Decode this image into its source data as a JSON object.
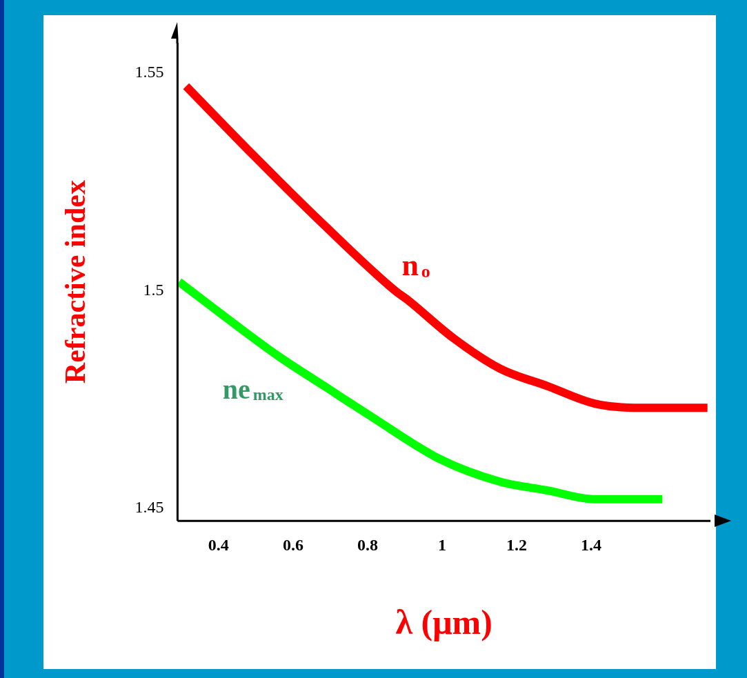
{
  "chart_data": {
    "type": "line",
    "xlabel": "λ (μm)",
    "ylabel": "Refractive index",
    "xlim": [
      0.29,
      1.72
    ],
    "ylim": [
      1.447,
      1.557
    ],
    "xticks": [
      0.4,
      0.6,
      0.8,
      1,
      1.2,
      1.4
    ],
    "yticks": [
      1.45,
      1.5,
      1.55
    ],
    "grid": false,
    "legend": false,
    "marker": "none",
    "line_style": "solid",
    "series": [
      {
        "name": "n$_{o}$",
        "color": "#ff0000",
        "x": [
          0.313,
          0.495,
          0.684,
          0.873,
          0.905,
          1.031,
          1.156,
          1.283,
          1.409,
          1.534,
          1.712
        ],
        "values": [
          1.547,
          1.531,
          1.515,
          1.5,
          1.498,
          1.489,
          1.482,
          1.478,
          1.474,
          1.473,
          1.473
        ]
      },
      {
        "name": "ne$_{max}$",
        "color": "#00ff00",
        "x": [
          0.294,
          0.432,
          0.559,
          0.684,
          0.81,
          0.999,
          1.156,
          1.283,
          1.409,
          1.591
        ],
        "values": [
          1.502,
          1.493,
          1.485,
          1.478,
          1.471,
          1.461,
          1.456,
          1.454,
          1.452,
          1.452
        ]
      }
    ]
  }
}
